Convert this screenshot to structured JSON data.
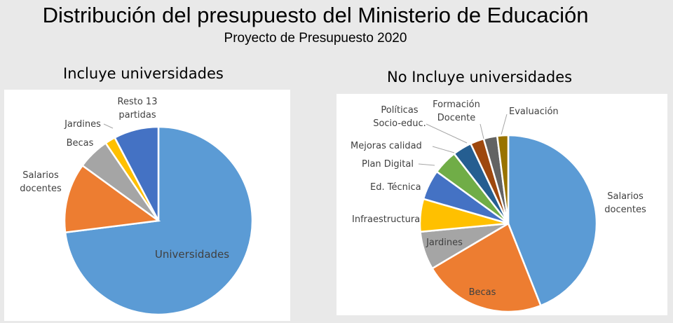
{
  "header": {
    "title": "Distribución del presupuesto del Ministerio de Educación",
    "subtitle": "Proyecto de Presupuesto 2020"
  },
  "chart_data": [
    {
      "type": "pie",
      "title": "Incluye universidades",
      "slices": [
        {
          "label": "Universidades",
          "lines": [
            "Universidades"
          ],
          "value": 73.0,
          "color": "#5b9bd5"
        },
        {
          "label": "Salarios docentes",
          "lines": [
            "Salarios",
            "docentes"
          ],
          "value": 12.0,
          "color": "#ed7d31"
        },
        {
          "label": "Becas",
          "lines": [
            "Becas"
          ],
          "value": 5.5,
          "color": "#a5a5a5"
        },
        {
          "label": "Jardines",
          "lines": [
            "Jardines"
          ],
          "value": 1.8,
          "color": "#ffc000"
        },
        {
          "label": "Resto 13 partidas",
          "lines": [
            "Resto 13",
            "partidas"
          ],
          "value": 7.7,
          "color": "#4472c4"
        }
      ]
    },
    {
      "type": "pie",
      "title": "No Incluye universidades",
      "slices": [
        {
          "label": "Salarios docentes",
          "lines": [
            "Salarios",
            "docentes"
          ],
          "value": 44.0,
          "color": "#5b9bd5"
        },
        {
          "label": "Becas",
          "lines": [
            "Becas"
          ],
          "value": 22.5,
          "color": "#ed7d31"
        },
        {
          "label": "Jardines",
          "lines": [
            "Jardines"
          ],
          "value": 7.0,
          "color": "#a5a5a5"
        },
        {
          "label": "Infraestructura",
          "lines": [
            "Infraestructura"
          ],
          "value": 6.0,
          "color": "#ffc000"
        },
        {
          "label": "Ed. Técnica",
          "lines": [
            "Ed. Técnica"
          ],
          "value": 5.5,
          "color": "#4472c4"
        },
        {
          "label": "Plan Digital",
          "lines": [
            "Plan Digital"
          ],
          "value": 4.5,
          "color": "#70ad47"
        },
        {
          "label": "Mejoras calidad",
          "lines": [
            "Mejoras calidad"
          ],
          "value": 3.5,
          "color": "#255e91"
        },
        {
          "label": "Políticas Socio-educ.",
          "lines": [
            "Políticas",
            "Socio-educ."
          ],
          "value": 2.5,
          "color": "#9e480e"
        },
        {
          "label": "Formación Docente",
          "lines": [
            "Formación",
            "Docente"
          ],
          "value": 2.5,
          "color": "#636363"
        },
        {
          "label": "Evaluación",
          "lines": [
            "Evaluación"
          ],
          "value": 2.0,
          "color": "#997300"
        }
      ]
    }
  ]
}
